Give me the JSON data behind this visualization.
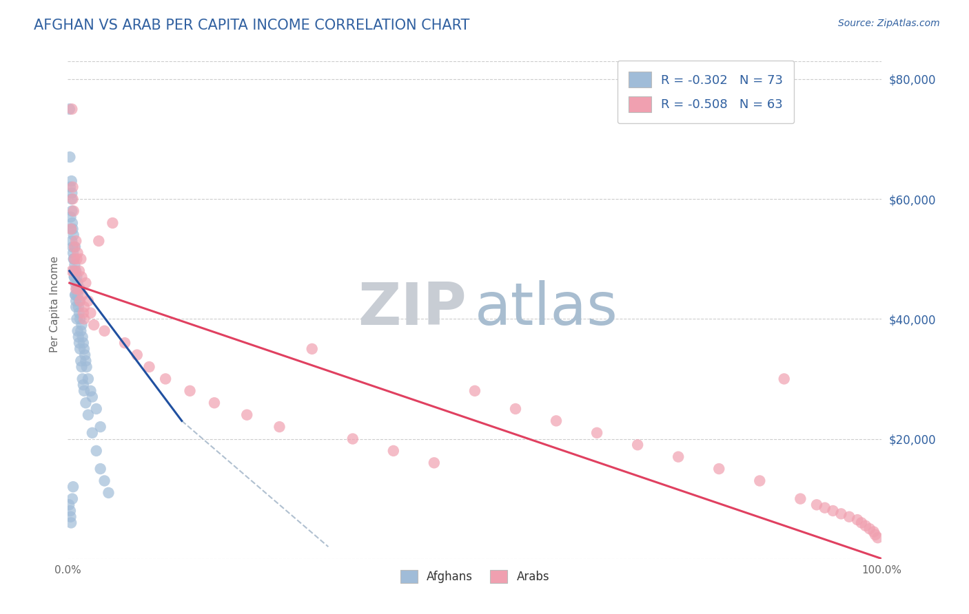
{
  "title": "AFGHAN VS ARAB PER CAPITA INCOME CORRELATION CHART",
  "source": "Source: ZipAtlas.com",
  "ylabel": "Per Capita Income",
  "title_color": "#3060a0",
  "source_color": "#3060a0",
  "axis_label_color": "#666666",
  "tick_color": "#3060a0",
  "background_color": "#ffffff",
  "grid_color": "#cccccc",
  "watermark_ZIP_color": "#c8cdd4",
  "watermark_atlas_color": "#a8bdd0",
  "afghan_scatter_color": "#a0bcd8",
  "arab_scatter_color": "#f0a0b0",
  "afghan_line_color": "#2050a0",
  "arab_line_color": "#e04060",
  "afghan_dash_color": "#b0c0d0",
  "afghan_R": -0.302,
  "afghan_N": 73,
  "arab_R": -0.508,
  "arab_N": 63,
  "xlim": [
    0,
    100
  ],
  "ylim": [
    0,
    85000
  ],
  "yticks": [
    0,
    20000,
    40000,
    60000,
    80000
  ],
  "ytick_labels": [
    "",
    "$20,000",
    "$40,000",
    "$60,000",
    "$80,000"
  ],
  "xtick_labels": [
    "0.0%",
    "100.0%"
  ],
  "afghans_x": [
    0.15,
    0.2,
    0.25,
    0.3,
    0.35,
    0.4,
    0.45,
    0.45,
    0.5,
    0.5,
    0.55,
    0.6,
    0.65,
    0.7,
    0.7,
    0.75,
    0.8,
    0.85,
    0.9,
    0.9,
    0.95,
    1.0,
    1.0,
    1.1,
    1.1,
    1.2,
    1.2,
    1.3,
    1.4,
    1.4,
    1.5,
    1.5,
    1.6,
    1.7,
    1.8,
    1.9,
    2.0,
    2.1,
    2.2,
    2.3,
    2.5,
    2.8,
    3.0,
    3.5,
    4.0,
    0.5,
    0.6,
    0.7,
    0.8,
    0.9,
    1.0,
    1.1,
    1.2,
    1.3,
    1.4,
    1.5,
    1.6,
    1.7,
    1.8,
    1.9,
    2.0,
    2.2,
    2.5,
    3.0,
    3.5,
    4.0,
    4.5,
    5.0,
    0.3,
    0.35,
    0.4,
    0.55,
    0.65
  ],
  "afghans_y": [
    9000,
    75000,
    67000,
    62000,
    57000,
    55000,
    60000,
    63000,
    53000,
    58000,
    56000,
    52000,
    51000,
    54000,
    48000,
    50000,
    47000,
    49000,
    46000,
    52000,
    44000,
    48000,
    43000,
    45000,
    47000,
    46000,
    44000,
    42000,
    43000,
    41000,
    40000,
    45000,
    38000,
    39000,
    37000,
    36000,
    35000,
    34000,
    33000,
    32000,
    30000,
    28000,
    27000,
    25000,
    22000,
    61000,
    55000,
    50000,
    47000,
    44000,
    42000,
    40000,
    38000,
    37000,
    36000,
    35000,
    33000,
    32000,
    30000,
    29000,
    28000,
    26000,
    24000,
    21000,
    18000,
    15000,
    13000,
    11000,
    8000,
    7000,
    6000,
    10000,
    12000
  ],
  "arabs_x": [
    0.4,
    0.5,
    0.6,
    0.7,
    0.8,
    0.9,
    1.0,
    1.1,
    1.2,
    1.3,
    1.4,
    1.5,
    1.6,
    1.7,
    1.8,
    1.9,
    2.0,
    2.2,
    2.5,
    2.8,
    3.2,
    3.8,
    4.5,
    5.5,
    7.0,
    8.5,
    10.0,
    12.0,
    15.0,
    18.0,
    22.0,
    26.0,
    30.0,
    35.0,
    40.0,
    45.0,
    50.0,
    55.0,
    60.0,
    65.0,
    70.0,
    75.0,
    80.0,
    85.0,
    88.0,
    90.0,
    92.0,
    93.0,
    94.0,
    95.0,
    96.0,
    97.0,
    97.5,
    98.0,
    98.5,
    99.0,
    99.2,
    99.5,
    0.6,
    0.8,
    1.0,
    0.5,
    2.0
  ],
  "arabs_y": [
    55000,
    75000,
    60000,
    58000,
    52000,
    48000,
    53000,
    50000,
    51000,
    45000,
    48000,
    43000,
    50000,
    47000,
    44000,
    41000,
    42000,
    46000,
    43000,
    41000,
    39000,
    53000,
    38000,
    56000,
    36000,
    34000,
    32000,
    30000,
    28000,
    26000,
    24000,
    22000,
    35000,
    20000,
    18000,
    16000,
    28000,
    25000,
    23000,
    21000,
    19000,
    17000,
    15000,
    13000,
    30000,
    10000,
    9000,
    8500,
    8000,
    7500,
    7000,
    6500,
    6000,
    5500,
    5000,
    4500,
    4000,
    3500,
    62000,
    50000,
    45000,
    48000,
    40000
  ],
  "afghan_line_x0": 0.2,
  "afghan_line_x1": 14.0,
  "afghan_line_y0": 48000,
  "afghan_line_y1": 23000,
  "afghan_dash_x0": 14.0,
  "afghan_dash_x1": 32.0,
  "afghan_dash_y0": 23000,
  "afghan_dash_y1": 2000,
  "arab_line_x0": 0.2,
  "arab_line_x1": 100.0,
  "arab_line_y0": 46000,
  "arab_line_y1": 0
}
